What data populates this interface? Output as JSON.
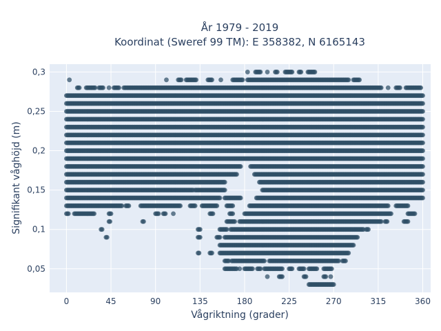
{
  "chart_data": {
    "type": "scatter",
    "title": "År 1979 - 2019",
    "subtitle": "Koordinat (Sweref 99 TM): E 358382, N 6165143",
    "xlabel": "Vågriktning (grader)",
    "ylabel": "Signifikant våghöjd (m)",
    "xlim": [
      -17,
      368
    ],
    "ylim": [
      0.02,
      0.31
    ],
    "x_ticks": [
      0,
      45,
      90,
      135,
      180,
      225,
      270,
      315,
      360
    ],
    "x_tick_labels": [
      "0",
      "45",
      "90",
      "135",
      "180",
      "225",
      "270",
      "315",
      "360"
    ],
    "y_ticks": [
      0.05,
      0.1,
      0.15,
      0.2,
      0.25,
      0.3
    ],
    "y_tick_labels": [
      "0,05",
      "0,1",
      "0,15",
      "0,2",
      "0,25",
      "0,3"
    ],
    "grid": true,
    "marker_color": "#2f4f66",
    "background_color": "#e5ecf6",
    "bands": [
      {
        "y": 0.3,
        "ranges": [
          [
            183,
            183
          ],
          [
            191,
            196
          ],
          [
            203,
            203
          ],
          [
            211,
            213
          ],
          [
            221,
            228
          ],
          [
            235,
            237
          ],
          [
            244,
            251
          ]
        ]
      },
      {
        "y": 0.29,
        "ranges": [
          [
            3,
            3
          ],
          [
            101,
            101
          ],
          [
            113,
            116
          ],
          [
            121,
            131
          ],
          [
            143,
            147
          ],
          [
            156,
            156
          ],
          [
            168,
            178
          ],
          [
            183,
            285
          ],
          [
            290,
            296
          ]
        ]
      },
      {
        "y": 0.28,
        "ranges": [
          [
            11,
            13
          ],
          [
            20,
            29
          ],
          [
            33,
            37
          ],
          [
            43,
            43
          ],
          [
            48,
            53
          ],
          [
            58,
            318
          ],
          [
            325,
            325
          ],
          [
            333,
            337
          ],
          [
            343,
            358
          ]
        ]
      },
      {
        "y": 0.27,
        "ranges": [
          [
            0,
            360
          ]
        ]
      },
      {
        "y": 0.26,
        "ranges": [
          [
            0,
            360
          ]
        ]
      },
      {
        "y": 0.25,
        "ranges": [
          [
            0,
            360
          ]
        ]
      },
      {
        "y": 0.24,
        "ranges": [
          [
            0,
            360
          ]
        ]
      },
      {
        "y": 0.23,
        "ranges": [
          [
            0,
            360
          ]
        ]
      },
      {
        "y": 0.22,
        "ranges": [
          [
            0,
            360
          ]
        ]
      },
      {
        "y": 0.21,
        "ranges": [
          [
            0,
            360
          ]
        ]
      },
      {
        "y": 0.2,
        "ranges": [
          [
            0,
            360
          ]
        ]
      },
      {
        "y": 0.19,
        "ranges": [
          [
            0,
            360
          ]
        ]
      },
      {
        "y": 0.18,
        "ranges": [
          [
            0,
            176
          ],
          [
            186,
            360
          ]
        ]
      },
      {
        "y": 0.17,
        "ranges": [
          [
            0,
            172
          ],
          [
            190,
            360
          ]
        ]
      },
      {
        "y": 0.16,
        "ranges": [
          [
            0,
            160
          ],
          [
            195,
            360
          ]
        ]
      },
      {
        "y": 0.15,
        "ranges": [
          [
            0,
            128
          ],
          [
            130,
            160
          ],
          [
            198,
            360
          ]
        ]
      },
      {
        "y": 0.14,
        "ranges": [
          [
            0,
            155
          ],
          [
            160,
            176
          ],
          [
            192,
            360
          ]
        ]
      },
      {
        "y": 0.13,
        "ranges": [
          [
            0,
            56
          ],
          [
            60,
            63
          ],
          [
            75,
            115
          ],
          [
            125,
            130
          ],
          [
            137,
            152
          ],
          [
            162,
            168
          ],
          [
            185,
            325
          ],
          [
            333,
            345
          ]
        ]
      },
      {
        "y": 0.12,
        "ranges": [
          [
            0,
            2
          ],
          [
            8,
            28
          ],
          [
            43,
            45
          ],
          [
            90,
            93
          ],
          [
            98,
            100
          ],
          [
            108,
            108
          ],
          [
            145,
            148
          ],
          [
            165,
            168
          ],
          [
            180,
            328
          ],
          [
            345,
            352
          ]
        ]
      },
      {
        "y": 0.11,
        "ranges": [
          [
            43,
            44
          ],
          [
            77,
            78
          ],
          [
            162,
            170
          ],
          [
            175,
            318
          ],
          [
            322,
            324
          ],
          [
            341,
            345
          ]
        ]
      },
      {
        "y": 0.1,
        "ranges": [
          [
            35,
            36
          ],
          [
            133,
            135
          ],
          [
            155,
            162
          ],
          [
            166,
            300
          ],
          [
            303,
            305
          ]
        ]
      },
      {
        "y": 0.09,
        "ranges": [
          [
            40,
            41
          ],
          [
            133,
            135
          ],
          [
            152,
            155
          ],
          [
            160,
            294
          ]
        ]
      },
      {
        "y": 0.08,
        "ranges": [
          [
            155,
            290
          ]
        ]
      },
      {
        "y": 0.07,
        "ranges": [
          [
            133,
            134
          ],
          [
            145,
            147
          ],
          [
            155,
            285
          ]
        ]
      },
      {
        "y": 0.06,
        "ranges": [
          [
            160,
            164
          ],
          [
            167,
            200
          ],
          [
            205,
            275
          ],
          [
            279,
            282
          ]
        ]
      },
      {
        "y": 0.05,
        "ranges": [
          [
            160,
            172
          ],
          [
            175,
            175
          ],
          [
            180,
            188
          ],
          [
            193,
            196
          ],
          [
            200,
            218
          ],
          [
            225,
            228
          ],
          [
            235,
            240
          ],
          [
            245,
            253
          ],
          [
            260,
            268
          ]
        ]
      },
      {
        "y": 0.04,
        "ranges": [
          [
            203,
            203
          ],
          [
            215,
            218
          ],
          [
            240,
            242
          ],
          [
            260,
            262
          ],
          [
            267,
            267
          ]
        ]
      },
      {
        "y": 0.03,
        "ranges": [
          [
            245,
            270
          ]
        ]
      }
    ]
  }
}
